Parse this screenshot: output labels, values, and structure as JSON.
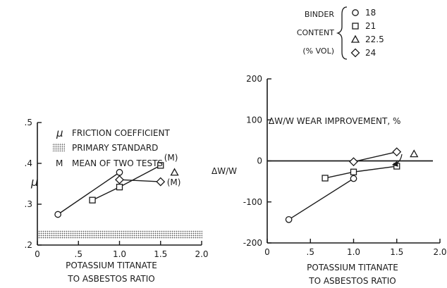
{
  "legend": {
    "title_lines": [
      "BINDER",
      "CONTENT",
      "(% VOL)"
    ],
    "entries": [
      {
        "marker": "circle",
        "label": "18"
      },
      {
        "marker": "square",
        "label": "21"
      },
      {
        "marker": "triangle",
        "label": "22.5"
      },
      {
        "marker": "diamond",
        "label": "24"
      }
    ]
  },
  "colors": {
    "ink": "#1a1a1a",
    "standard_band": "#c8c8c8"
  },
  "chart_data": [
    {
      "type": "scatter",
      "ylabel": "μ",
      "xlabel_lines": [
        "POTASSIUM TITANATE",
        "TO ASBESTOS RATIO"
      ],
      "xlim": [
        0,
        2.0
      ],
      "ylim": [
        0.2,
        0.5
      ],
      "x_ticks": [
        "0",
        ".5",
        "1.0",
        "1.5",
        "2.0"
      ],
      "y_ticks": [
        ".2",
        ".3",
        ".4",
        ".5"
      ],
      "key": [
        {
          "symbol": "μ",
          "text": "FRICTION COEFFICIENT"
        },
        {
          "symbol": "band",
          "text": "PRIMARY STANDARD"
        },
        {
          "symbol": "M",
          "text": "MEAN OF TWO TESTS"
        }
      ],
      "band": {
        "label": "PRIMARY STANDARD",
        "range": [
          0.215,
          0.235
        ]
      },
      "series": [
        {
          "name": "18",
          "marker": "circle",
          "x": [
            0.25,
            1.0
          ],
          "y": [
            0.275,
            0.378
          ]
        },
        {
          "name": "21",
          "marker": "square",
          "x": [
            0.67,
            1.0,
            1.5
          ],
          "y": [
            0.31,
            0.342,
            0.395
          ]
        },
        {
          "name": "22.5",
          "marker": "triangle",
          "x": [
            1.67
          ],
          "y": [
            0.378
          ]
        },
        {
          "name": "24",
          "marker": "diamond",
          "x": [
            1.0,
            1.5
          ],
          "y": [
            0.36,
            0.355
          ]
        }
      ],
      "annotations": [
        {
          "text": "(M)",
          "series": "21",
          "index": 2
        },
        {
          "text": "(M)",
          "series": "24",
          "index": 1
        }
      ]
    },
    {
      "type": "scatter",
      "ylabel": "ΔW/W",
      "title": "ΔW/W  WEAR IMPROVEMENT, %",
      "xlabel_lines": [
        "POTASSIUM TITANATE",
        "TO ASBESTOS RATIO"
      ],
      "xlim": [
        0,
        2.0
      ],
      "ylim": [
        -200,
        200
      ],
      "x_ticks": [
        "0",
        ".5",
        "1.0",
        "1.5",
        "2.0"
      ],
      "y_ticks": [
        "200",
        "100",
        "0",
        "-100",
        "-200"
      ],
      "zero_line": true,
      "series": [
        {
          "name": "18",
          "marker": "circle",
          "x": [
            0.25,
            1.0
          ],
          "y": [
            -143,
            -43
          ]
        },
        {
          "name": "21",
          "marker": "square",
          "x": [
            0.67,
            1.0,
            1.5
          ],
          "y": [
            -42,
            -27,
            -13
          ]
        },
        {
          "name": "22.5",
          "marker": "triangle",
          "x": [
            1.7
          ],
          "y": [
            17
          ]
        },
        {
          "name": "24",
          "marker": "diamond",
          "x": [
            1.0,
            1.5
          ],
          "y": [
            -2,
            22
          ]
        }
      ]
    }
  ]
}
